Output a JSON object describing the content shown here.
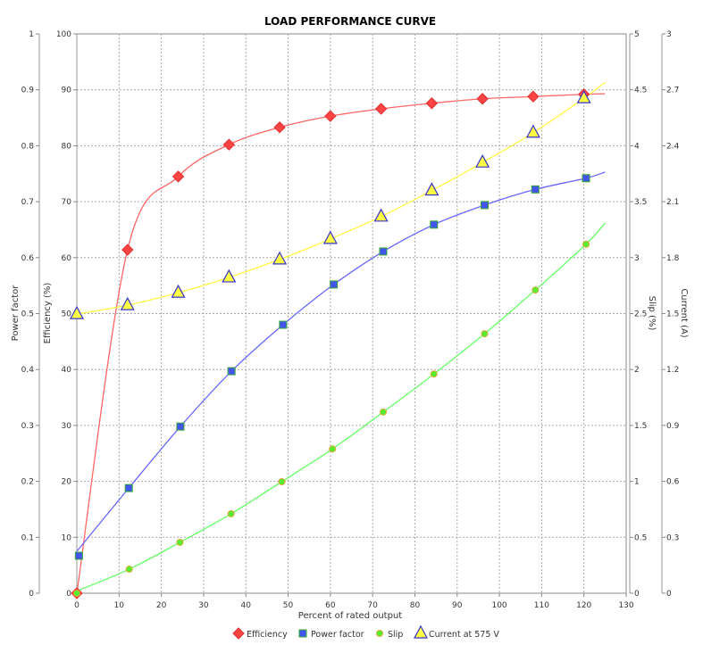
{
  "chart_data": {
    "type": "line",
    "title": "LOAD PERFORMANCE CURVE",
    "xlabel": "Percent of rated output",
    "xlim": [
      0,
      130
    ],
    "xticks": [
      0,
      10,
      20,
      30,
      40,
      50,
      60,
      70,
      80,
      90,
      100,
      110,
      120,
      130
    ],
    "grid": true,
    "legend_placement": "bottom",
    "axes": {
      "power_factor": {
        "label": "Power factor",
        "side": "left-outer",
        "lim": [
          0,
          1
        ],
        "ticks": [
          "0",
          "0.1",
          "0.2",
          "0.3",
          "0.4",
          "0.5",
          "0.6",
          "0.7",
          "0.8",
          "0.9",
          "1"
        ]
      },
      "efficiency": {
        "label": "Efficiency (%)",
        "side": "left",
        "lim": [
          0,
          100
        ],
        "ticks": [
          "0",
          "10",
          "20",
          "30",
          "40",
          "50",
          "60",
          "70",
          "80",
          "90",
          "100"
        ]
      },
      "slip": {
        "label": "Slip (%)",
        "side": "right",
        "lim": [
          0,
          5
        ],
        "ticks": [
          "0",
          "0.5",
          "1",
          "1.5",
          "2",
          "2.5",
          "3",
          "3.5",
          "4",
          "4.5",
          "5"
        ]
      },
      "current": {
        "label": "Current (A)",
        "side": "right-outer",
        "lim": [
          0,
          3
        ],
        "ticks": [
          "0",
          "0.3",
          "0.6",
          "0.9",
          "1.2",
          "1.5",
          "1.8",
          "2.1",
          "2.4",
          "2.7",
          "3"
        ]
      }
    },
    "series": [
      {
        "name": "Efficiency",
        "axis": "efficiency",
        "color": "#ff4444",
        "line_color": "#ff6666",
        "marker": "diamond",
        "x": [
          0,
          12,
          24,
          36,
          48,
          60,
          72,
          84,
          96,
          108,
          120
        ],
        "y": [
          0,
          61.4,
          74.5,
          80.2,
          83.3,
          85.3,
          86.6,
          87.6,
          88.4,
          88.8,
          89.2
        ],
        "curve_end": [
          125,
          89.3
        ]
      },
      {
        "name": "Power factor",
        "axis": "power_factor",
        "color": "#4455ee",
        "line_color": "#6666ff",
        "marker": "square",
        "x": [
          0.5,
          12.3,
          24.5,
          36.6,
          48.8,
          60.8,
          72.5,
          84.5,
          96.5,
          108.5,
          120.5
        ],
        "y": [
          0.067,
          0.188,
          0.298,
          0.397,
          0.48,
          0.552,
          0.611,
          0.659,
          0.694,
          0.722,
          0.742
        ],
        "curve_start": [
          0,
          0.075
        ],
        "curve_end": [
          125,
          0.753
        ]
      },
      {
        "name": "Slip",
        "axis": "slip",
        "color": "#55ee33",
        "line_color": "#66ff66",
        "marker": "circle",
        "x": [
          0,
          12.4,
          24.4,
          36.5,
          48.5,
          60.5,
          72.5,
          84.5,
          96.5,
          108.5,
          120.5
        ],
        "y": [
          0,
          0.215,
          0.455,
          0.71,
          0.997,
          1.29,
          1.62,
          1.96,
          2.32,
          2.71,
          3.12
        ],
        "curve_start": [
          0,
          0.02
        ],
        "curve_end": [
          125,
          3.31
        ]
      },
      {
        "name": "Current at 575 V",
        "axis": "current",
        "color": "#ffff44",
        "line_color": "#ffff44",
        "marker": "triangle",
        "x": [
          0,
          12,
          24,
          36,
          48,
          60,
          72,
          84,
          96,
          108,
          120
        ],
        "y": [
          1.497,
          1.545,
          1.612,
          1.694,
          1.79,
          1.9,
          2.02,
          2.16,
          2.31,
          2.47,
          2.655
        ],
        "curve_end": [
          125,
          2.74
        ]
      }
    ]
  }
}
